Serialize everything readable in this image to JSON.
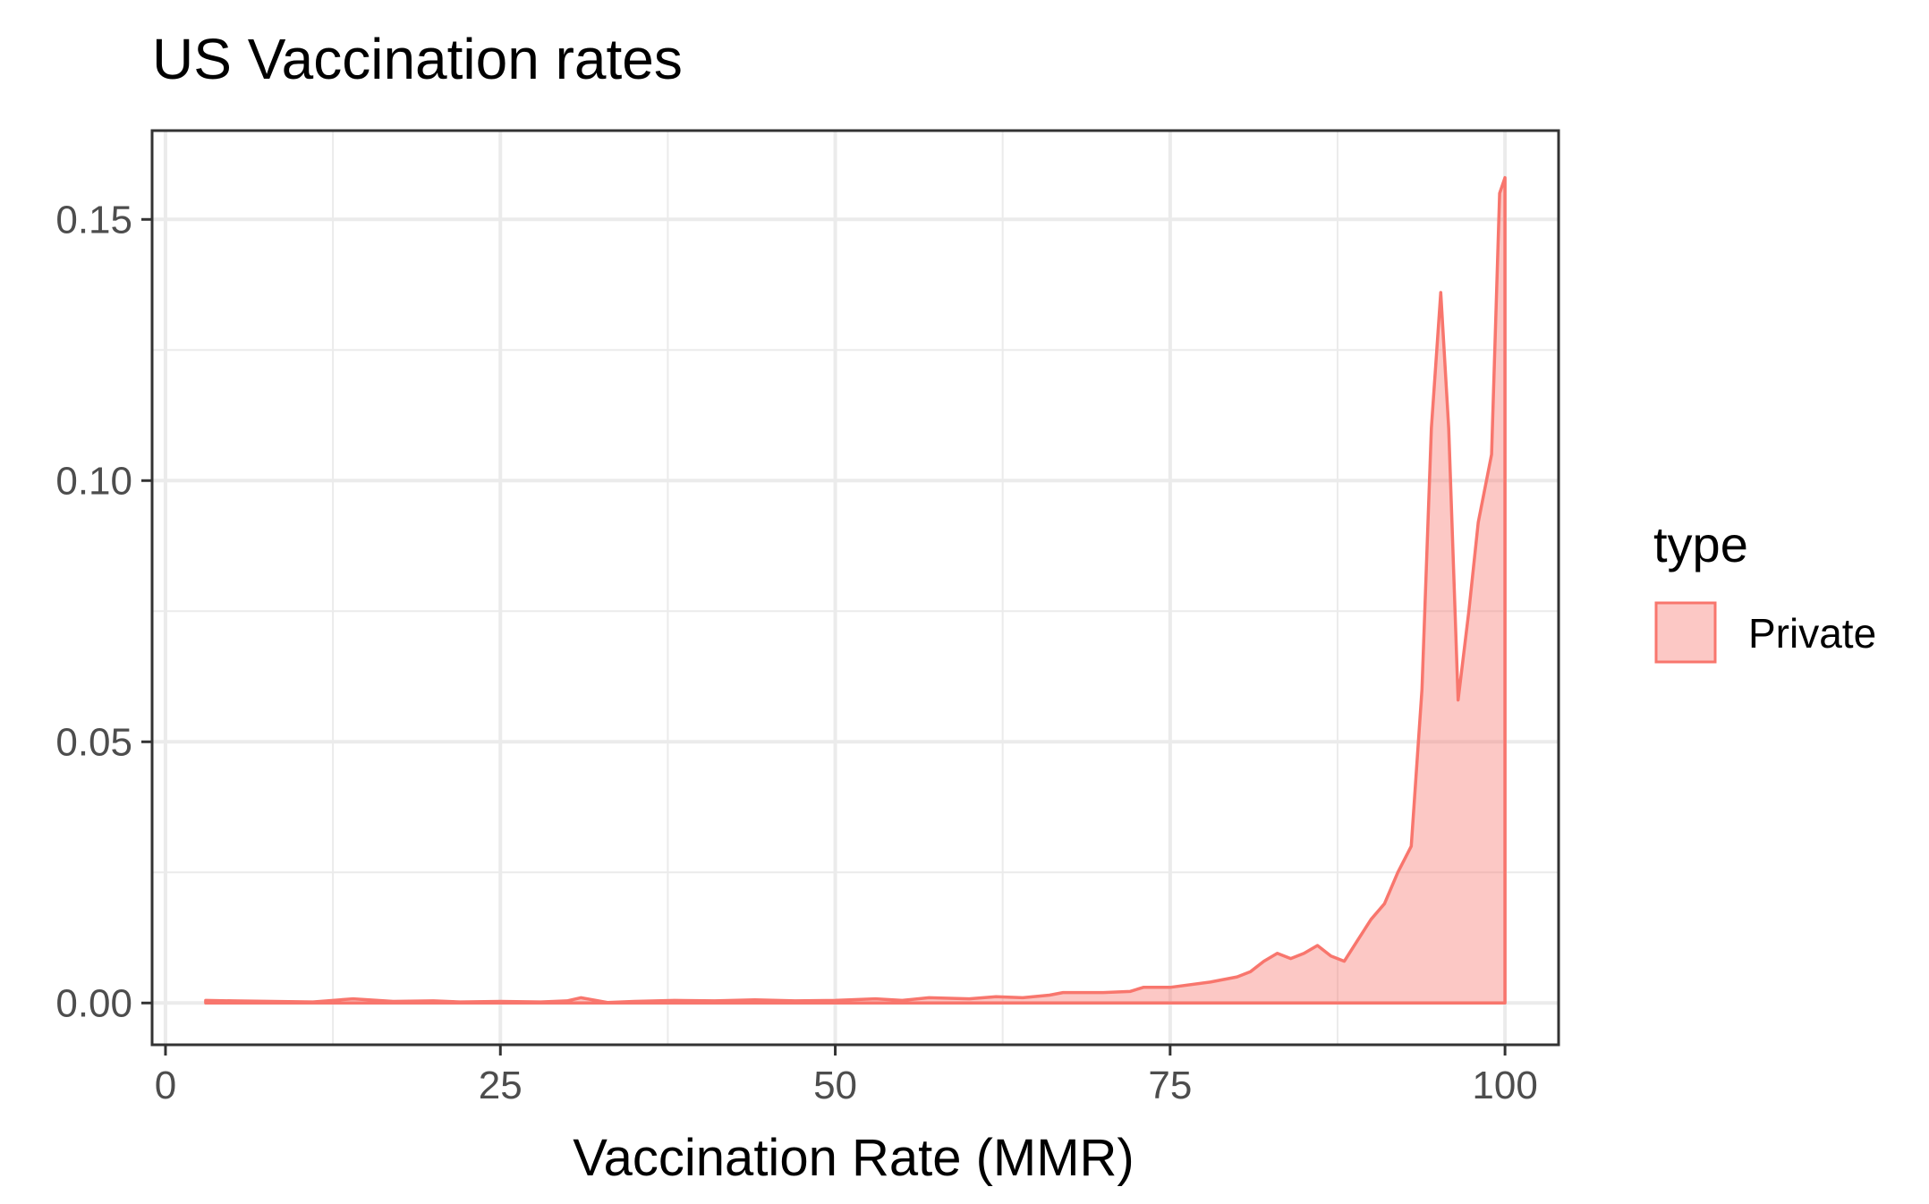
{
  "chart_data": {
    "type": "area",
    "title": "US Vaccination rates",
    "xlabel": "Vaccination Rate (MMR)",
    "ylabel": "",
    "xlim": [
      -1,
      104
    ],
    "ylim": [
      -0.008,
      0.167
    ],
    "x_ticks": [
      0,
      25,
      50,
      75,
      100
    ],
    "x_tick_labels": [
      "0",
      "25",
      "50",
      "75",
      "100"
    ],
    "y_ticks": [
      0.0,
      0.05,
      0.1,
      0.15
    ],
    "y_tick_labels": [
      "0.00",
      "0.05",
      "0.10",
      "0.15"
    ],
    "grid": true,
    "legend": {
      "title": "type",
      "position": "right",
      "entries": [
        {
          "label": "Private",
          "fill": "#F8766D",
          "fill_opacity": 0.4
        }
      ]
    },
    "series": [
      {
        "name": "Private",
        "color": "#F8766D",
        "x": [
          3,
          5,
          8,
          11,
          14,
          17,
          20,
          22,
          25,
          28,
          30,
          31,
          33,
          35,
          38,
          41,
          44,
          47,
          50,
          53,
          55,
          57,
          60,
          62,
          64,
          66,
          67,
          70,
          72,
          73,
          75,
          78,
          80,
          81,
          82,
          83,
          84,
          85,
          86,
          87,
          88,
          89,
          90,
          91,
          92,
          93,
          93.8,
          94.5,
          95.2,
          95.8,
          96.5,
          97.3,
          98,
          99,
          99.6,
          100
        ],
        "y": [
          0.0005,
          0.0004,
          0.0003,
          0.0002,
          0.0008,
          0.0003,
          0.0004,
          0.0002,
          0.0003,
          0.0002,
          0.0004,
          0.001,
          0.0001,
          0.0003,
          0.0005,
          0.0004,
          0.0006,
          0.0004,
          0.0005,
          0.0008,
          0.0005,
          0.001,
          0.0008,
          0.0012,
          0.001,
          0.0015,
          0.002,
          0.002,
          0.0022,
          0.003,
          0.003,
          0.004,
          0.005,
          0.006,
          0.008,
          0.0095,
          0.0085,
          0.0095,
          0.011,
          0.009,
          0.008,
          0.012,
          0.016,
          0.019,
          0.025,
          0.03,
          0.06,
          0.11,
          0.136,
          0.11,
          0.058,
          0.075,
          0.092,
          0.105,
          0.155,
          0.158
        ]
      }
    ]
  }
}
